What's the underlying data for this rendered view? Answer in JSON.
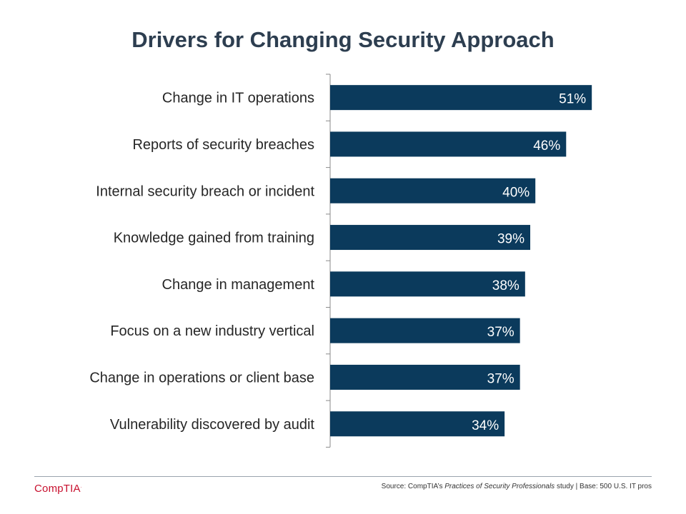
{
  "page": {
    "title": "Drivers for Changing Security Approach"
  },
  "chart_data": {
    "type": "bar",
    "orientation": "horizontal",
    "categories": [
      "Change in IT operations",
      "Reports of security breaches",
      "Internal security breach or incident",
      "Knowledge gained from training",
      "Change in management",
      "Focus on a new industry vertical",
      "Change in operations or client base",
      "Vulnerability discovered by audit"
    ],
    "values": [
      51,
      46,
      40,
      39,
      38,
      37,
      37,
      34
    ],
    "value_labels": [
      "51%",
      "46%",
      "40%",
      "39%",
      "38%",
      "37%",
      "37%",
      "34%"
    ],
    "title": "Drivers for Changing Security Approach",
    "xlim": [
      0,
      100
    ],
    "grid": false,
    "bar_color": "#0b3a5c"
  },
  "footer": {
    "logo_text": "CompTIA",
    "source_prefix": "Source: CompTIA’s ",
    "source_italic": "Practices of Security Professionals",
    "source_suffix": " study | Base: 500 U.S. IT pros"
  },
  "colors": {
    "title": "#2d3e50",
    "bar": "#0b3a5c",
    "logo": "#c8102e"
  }
}
